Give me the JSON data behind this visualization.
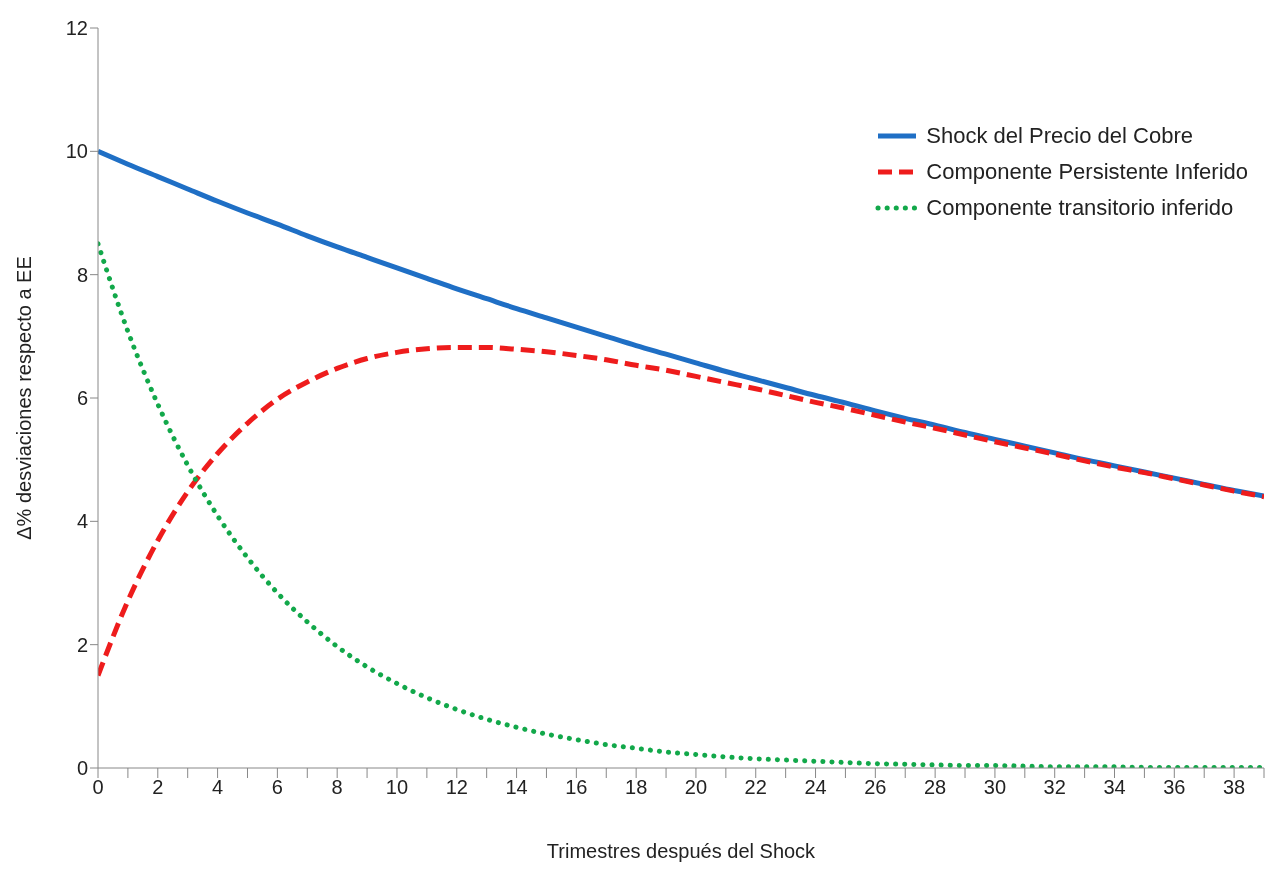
{
  "chart_data": {
    "type": "line",
    "xlabel": "Trimestres después del Shock",
    "ylabel": "Δ% desviaciones respecto a EE",
    "x": [
      0,
      1,
      2,
      3,
      4,
      5,
      6,
      7,
      8,
      9,
      10,
      11,
      12,
      13,
      14,
      15,
      16,
      17,
      18,
      19,
      20,
      21,
      22,
      23,
      24,
      25,
      26,
      27,
      28,
      29,
      30,
      31,
      32,
      33,
      34,
      35,
      36,
      37,
      38,
      39
    ],
    "series": [
      {
        "name": "Shock del Precio del Cobre",
        "color": "#1f6fc5",
        "line_style": "solid",
        "values": [
          10.0,
          9.79,
          9.59,
          9.39,
          9.19,
          9.0,
          8.82,
          8.63,
          8.45,
          8.28,
          8.11,
          7.94,
          7.77,
          7.61,
          7.45,
          7.3,
          7.15,
          7.0,
          6.85,
          6.71,
          6.57,
          6.43,
          6.3,
          6.17,
          6.04,
          5.92,
          5.79,
          5.67,
          5.56,
          5.44,
          5.33,
          5.22,
          5.11,
          5.0,
          4.9,
          4.8,
          4.7,
          4.6,
          4.5,
          4.41
        ]
      },
      {
        "name": "Componente Persistente Inferido",
        "color": "#ee1c1c",
        "line_style": "dashed",
        "values": [
          1.5,
          2.71,
          3.69,
          4.48,
          5.1,
          5.59,
          5.98,
          6.26,
          6.48,
          6.64,
          6.74,
          6.8,
          6.82,
          6.82,
          6.79,
          6.75,
          6.69,
          6.62,
          6.53,
          6.45,
          6.35,
          6.25,
          6.15,
          6.04,
          5.93,
          5.83,
          5.72,
          5.61,
          5.51,
          5.4,
          5.29,
          5.19,
          5.09,
          4.98,
          4.88,
          4.79,
          4.69,
          4.59,
          4.49,
          4.4
        ]
      },
      {
        "name": "Componente transitorio inferido",
        "color": "#12a84a",
        "line_style": "dotted",
        "values": [
          8.5,
          7.08,
          5.9,
          4.91,
          4.09,
          3.41,
          2.84,
          2.37,
          1.97,
          1.64,
          1.37,
          1.14,
          0.95,
          0.79,
          0.66,
          0.55,
          0.46,
          0.38,
          0.32,
          0.26,
          0.22,
          0.18,
          0.15,
          0.13,
          0.11,
          0.09,
          0.07,
          0.06,
          0.05,
          0.04,
          0.04,
          0.03,
          0.02,
          0.02,
          0.02,
          0.01,
          0.01,
          0.01,
          0.01,
          0.01
        ]
      }
    ],
    "xlim": [
      0,
      39
    ],
    "xticks": [
      0,
      {
        "value": 1,
        "label": null
      },
      2,
      {
        "value": 3,
        "label": null
      },
      4,
      {
        "value": 5,
        "label": null
      },
      6,
      {
        "value": 7,
        "label": null
      },
      8,
      {
        "value": 9,
        "label": null
      },
      10,
      {
        "value": 11,
        "label": null
      },
      12,
      {
        "value": 13,
        "label": null
      },
      14,
      {
        "value": 15,
        "label": null
      },
      16,
      {
        "value": 17,
        "label": null
      },
      18,
      {
        "value": 19,
        "label": null
      },
      20,
      {
        "value": 21,
        "label": null
      },
      22,
      {
        "value": 23,
        "label": null
      },
      24,
      {
        "value": 25,
        "label": null
      },
      26,
      {
        "value": 27,
        "label": null
      },
      28,
      {
        "value": 29,
        "label": null
      },
      30,
      {
        "value": 31,
        "label": null
      },
      32,
      {
        "value": 33,
        "label": null
      },
      34,
      {
        "value": 35,
        "label": null
      },
      36,
      {
        "value": 37,
        "label": null
      },
      38,
      {
        "value": 39,
        "label": null
      }
    ],
    "ylim": [
      0,
      12
    ],
    "yticks": [
      0,
      2,
      4,
      6,
      8,
      10,
      12
    ],
    "grid": false,
    "legend": "top right",
    "marker": "none"
  }
}
